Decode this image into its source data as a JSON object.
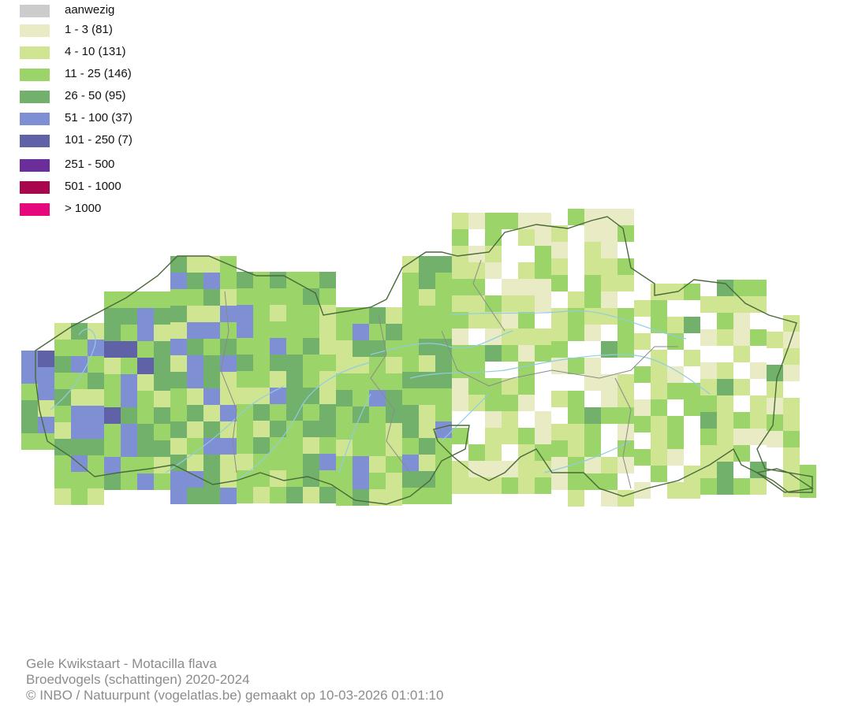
{
  "legend": {
    "items": [
      {
        "label": "aanwezig",
        "color": "#cccccc"
      },
      {
        "label": "1 - 3 (81)",
        "color": "#e9ebc5"
      },
      {
        "label": "4 - 10 (131)",
        "color": "#cfe591"
      },
      {
        "label": "11 - 25 (146)",
        "color": "#9bd468"
      },
      {
        "label": "26 - 50 (95)",
        "color": "#72b16c"
      },
      {
        "label": "51 - 100 (37)",
        "color": "#7f8fd3"
      },
      {
        "label": "101 - 250 (7)",
        "color": "#5f62a6"
      },
      {
        "label": "251 - 500",
        "color": "#6a2d99"
      },
      {
        "label": "501 - 1000",
        "color": "#a6074d"
      },
      {
        "label": "> 1000",
        "color": "#e6067e"
      }
    ]
  },
  "map": {
    "border_color": "#4a6a3a",
    "province_border_color": "#8a8a8a",
    "river_color": "#8fcde0"
  },
  "footer": {
    "line1": "Gele Kwikstaart - Motacilla flava",
    "line2": "Broedvogels (schattingen) 2020-2024",
    "line3": "© INBO / Natuurpunt (vogelatlas.be) gemaakt op 10-03-2026 01:01:10"
  }
}
